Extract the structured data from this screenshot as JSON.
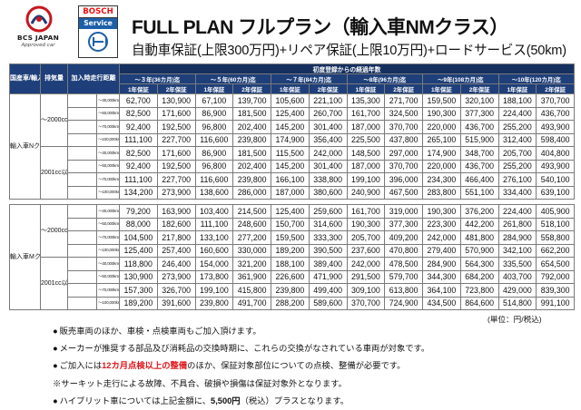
{
  "logos": {
    "bcs_name": "BCS JAPAN",
    "bcs_tagline": "Approved car",
    "bosch_name": "BOSCH",
    "bosch_service": "Service"
  },
  "header": {
    "title": "FULL PLAN フルプラン（輸入車NMクラス）",
    "subtitle": "自動車保証(上限300万円)+リペア保証(上限10万円)+ロードサービス(50km)"
  },
  "table": {
    "col_headers": {
      "country": "国産車/輸入車",
      "displacement": "排気量",
      "mileage": "加入時走行距離",
      "elapsed": "初度登録からの経過年数"
    },
    "period_headers": [
      "～３年(36カ月)迄",
      "～５年(60カ月)迄",
      "～７年(84カ月)迄",
      "～8年(96カ月)迄",
      "～9年(108カ月)迄",
      "～10年(120カ月)迄"
    ],
    "plan_headers": [
      "1年保証",
      "2年保証"
    ],
    "blocks": [
      {
        "vehicle": "輸入車Nクラス",
        "groups": [
          {
            "cc": "～2000cc",
            "rows": [
              {
                "km": "～30,000km",
                "values": [
                  "62,700",
                  "130,900",
                  "67,100",
                  "139,700",
                  "105,600",
                  "221,100",
                  "135,300",
                  "271,700",
                  "159,500",
                  "320,100",
                  "188,100",
                  "370,700"
                ]
              },
              {
                "km": "～50,000km",
                "values": [
                  "82,500",
                  "171,600",
                  "86,900",
                  "181,500",
                  "125,400",
                  "260,700",
                  "161,700",
                  "324,500",
                  "190,300",
                  "377,300",
                  "224,400",
                  "436,700"
                ]
              },
              {
                "km": "～70,000km",
                "values": [
                  "92,400",
                  "192,500",
                  "96,800",
                  "202,400",
                  "145,200",
                  "301,400",
                  "187,000",
                  "370,700",
                  "220,000",
                  "436,700",
                  "255,200",
                  "493,900"
                ]
              },
              {
                "km": "～100,000km",
                "values": [
                  "111,100",
                  "227,700",
                  "116,600",
                  "239,800",
                  "174,900",
                  "356,400",
                  "225,500",
                  "437,800",
                  "265,100",
                  "515,900",
                  "312,400",
                  "598,400"
                ]
              }
            ]
          },
          {
            "cc": "2001cc以上",
            "rows": [
              {
                "km": "～30,000km",
                "values": [
                  "82,500",
                  "171,600",
                  "86,900",
                  "181,500",
                  "115,500",
                  "242,000",
                  "148,500",
                  "297,000",
                  "174,900",
                  "348,700",
                  "205,700",
                  "404,800"
                ]
              },
              {
                "km": "～50,000km",
                "values": [
                  "92,400",
                  "192,500",
                  "96,800",
                  "202,400",
                  "145,200",
                  "301,400",
                  "187,000",
                  "370,700",
                  "220,000",
                  "436,700",
                  "255,200",
                  "493,900"
                ]
              },
              {
                "km": "～70,000km",
                "values": [
                  "111,100",
                  "227,700",
                  "116,600",
                  "239,800",
                  "166,100",
                  "338,800",
                  "199,100",
                  "396,000",
                  "234,300",
                  "466,400",
                  "276,100",
                  "540,100"
                ]
              },
              {
                "km": "～100,000km",
                "values": [
                  "134,200",
                  "273,900",
                  "138,600",
                  "286,000",
                  "187,000",
                  "380,600",
                  "240,900",
                  "467,500",
                  "283,800",
                  "551,100",
                  "334,400",
                  "639,100"
                ]
              }
            ]
          }
        ]
      },
      {
        "vehicle": "輸入車Mクラス",
        "groups": [
          {
            "cc": "～2000cc",
            "rows": [
              {
                "km": "～30,000km",
                "values": [
                  "79,200",
                  "163,900",
                  "103,400",
                  "214,500",
                  "125,400",
                  "259,600",
                  "161,700",
                  "319,000",
                  "190,300",
                  "376,200",
                  "224,400",
                  "405,900"
                ]
              },
              {
                "km": "～50,000km",
                "values": [
                  "88,000",
                  "182,600",
                  "111,100",
                  "248,600",
                  "150,700",
                  "314,600",
                  "190,300",
                  "377,300",
                  "223,300",
                  "442,200",
                  "261,800",
                  "518,100"
                ]
              },
              {
                "km": "～70,000km",
                "values": [
                  "104,500",
                  "217,800",
                  "133,100",
                  "277,200",
                  "159,500",
                  "333,300",
                  "205,700",
                  "409,200",
                  "242,000",
                  "481,800",
                  "284,900",
                  "558,800"
                ]
              },
              {
                "km": "～100,000km",
                "values": [
                  "125,400",
                  "257,400",
                  "160,600",
                  "330,000",
                  "189,200",
                  "390,500",
                  "237,600",
                  "470,800",
                  "279,400",
                  "570,900",
                  "342,100",
                  "662,200"
                ]
              }
            ]
          },
          {
            "cc": "2001cc以上",
            "rows": [
              {
                "km": "～30,000km",
                "values": [
                  "118,800",
                  "246,400",
                  "154,000",
                  "321,200",
                  "188,100",
                  "389,400",
                  "242,000",
                  "478,500",
                  "284,900",
                  "564,300",
                  "335,500",
                  "654,500"
                ]
              },
              {
                "km": "～50,000km",
                "values": [
                  "130,900",
                  "273,900",
                  "173,800",
                  "361,900",
                  "226,600",
                  "471,900",
                  "291,500",
                  "579,700",
                  "344,300",
                  "684,200",
                  "403,700",
                  "792,000"
                ]
              },
              {
                "km": "～70,000km",
                "values": [
                  "157,300",
                  "326,700",
                  "199,100",
                  "415,800",
                  "239,800",
                  "499,400",
                  "309,100",
                  "613,800",
                  "364,100",
                  "723,800",
                  "429,000",
                  "839,300"
                ]
              },
              {
                "km": "～100,000km",
                "values": [
                  "189,200",
                  "391,600",
                  "239,800",
                  "491,700",
                  "288,200",
                  "589,600",
                  "370,700",
                  "724,900",
                  "434,500",
                  "864,600",
                  "514,800",
                  "991,100"
                ]
              }
            ]
          }
        ]
      }
    ],
    "unit": "(単位：円/税込)"
  },
  "notes": [
    {
      "parts": [
        {
          "text": "販売車両のほか、車検・点検車両もご加入頂けます。"
        }
      ]
    },
    {
      "parts": [
        {
          "text": "メーカーが推奨する部品及び消耗品の交換時期に、これらの交換がなされている車両が対象です。"
        }
      ]
    },
    {
      "parts": [
        {
          "text": "ご加入には"
        },
        {
          "text": "12カ月点検以上の整備",
          "style": "red"
        },
        {
          "text": "のほか、保証対象部位についての点検、整備が必要です。"
        }
      ]
    },
    {
      "parts": [
        {
          "text": "※サーキット走行による故障、不具合、破損や損傷は保証対象外となります。"
        }
      ],
      "marker": "none"
    },
    {
      "parts": [
        {
          "text": "ハイブリット車については上記金額に、"
        },
        {
          "text": "5,500円",
          "style": "bold"
        },
        {
          "text": "（税込）プラスとなります。"
        }
      ]
    }
  ],
  "colors": {
    "header_navy": "#1e3f7a",
    "accent_red": "#e0161b",
    "bosch_blue": "#1d5fa9"
  }
}
